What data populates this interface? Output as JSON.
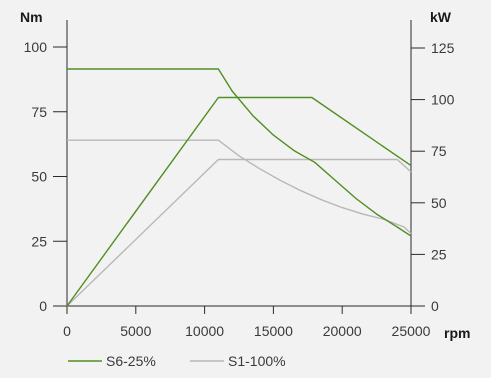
{
  "chart_data": {
    "type": "line",
    "x_unit": "rpm",
    "left_unit": "Nm",
    "right_unit": "kW",
    "x_ticks": [
      "0",
      "5000",
      "10000",
      "15000",
      "20000",
      "25000"
    ],
    "left_ticks": [
      "0",
      "25",
      "50",
      "75",
      "100"
    ],
    "right_ticks": [
      "0",
      "25",
      "50",
      "75",
      "100",
      "125"
    ],
    "xlim": [
      0,
      25000
    ],
    "left_ylim": [
      0,
      100
    ],
    "right_ylim": [
      0,
      137.5
    ],
    "grid": false,
    "legend_position": "bottom-left",
    "series": [
      {
        "name": "S6-25%",
        "color": "#4f8f23",
        "torque": {
          "x": [
            0,
            11000,
            12000,
            13500,
            15000,
            16500,
            18000,
            19500,
            21000,
            22500,
            24000,
            25000
          ],
          "y": [
            91.5,
            91.5,
            83,
            73.5,
            66,
            60,
            55.5,
            48.5,
            41.5,
            35.5,
            30.5,
            27
          ]
        },
        "power": {
          "x": [
            0,
            11000,
            17800,
            25000
          ],
          "y": [
            0,
            101,
            101,
            68
          ]
        }
      },
      {
        "name": "S1-100%",
        "color": "#b8b8b8",
        "torque": {
          "x": [
            0,
            11000,
            12500,
            14000,
            15500,
            17000,
            18500,
            20000,
            21500,
            23000,
            24500,
            25000
          ],
          "y": [
            64,
            64,
            58,
            53,
            48.5,
            44.5,
            41,
            38,
            35.5,
            33.5,
            30.5,
            28
          ]
        },
        "power": {
          "x": [
            0,
            11000,
            24000,
            25000
          ],
          "y": [
            0,
            71,
            71,
            65
          ]
        }
      }
    ]
  }
}
